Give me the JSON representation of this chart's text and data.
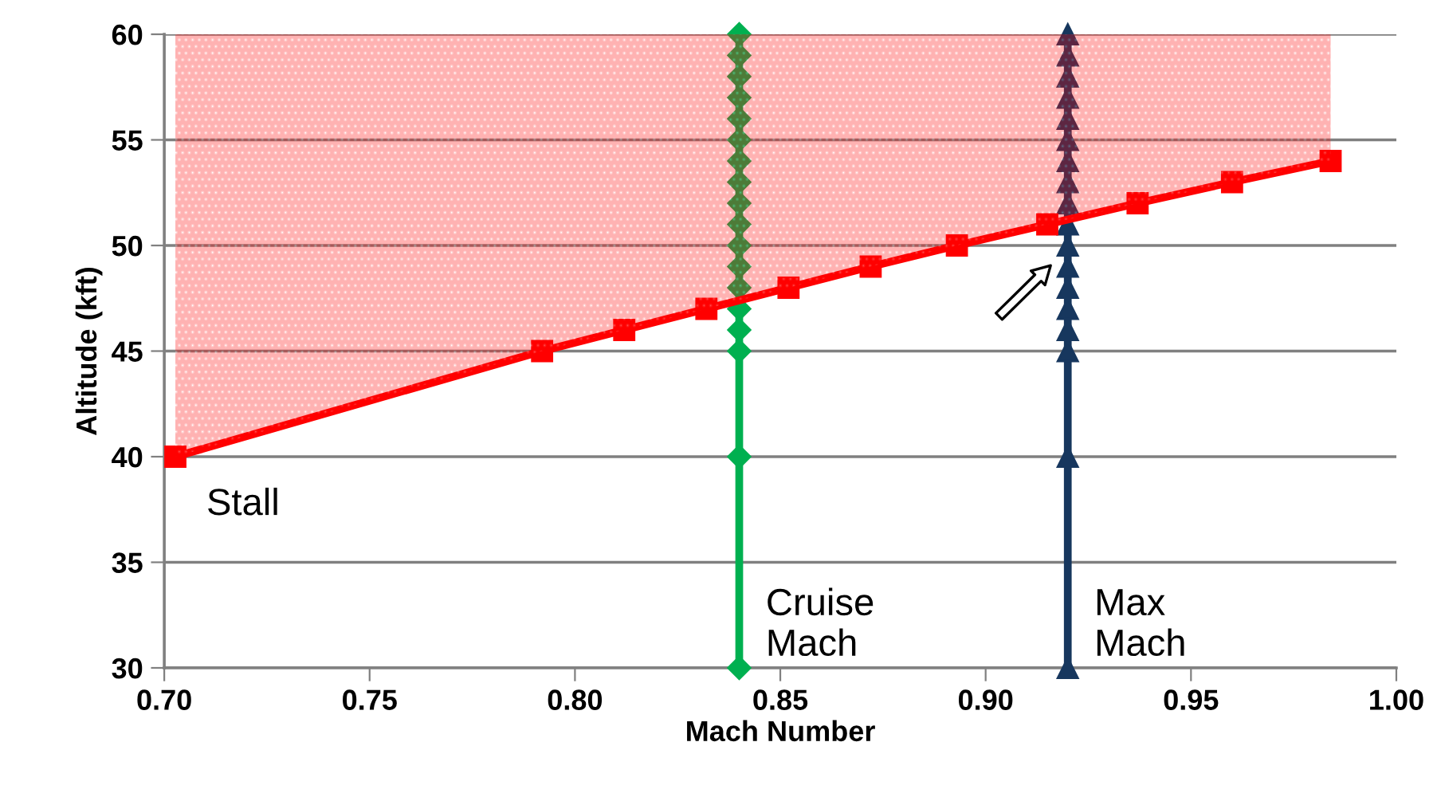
{
  "chart_data": {
    "type": "line",
    "xlabel": "Mach Number",
    "ylabel": "Altitude (kft)",
    "xlim": [
      0.7,
      1.0
    ],
    "xticks": [
      {
        "value": 0.7,
        "label": "0.70"
      },
      {
        "value": 0.75,
        "label": "0.75"
      },
      {
        "value": 0.8,
        "label": "0.80"
      },
      {
        "value": 0.85,
        "label": "0.85"
      },
      {
        "value": 0.9,
        "label": "0.90"
      },
      {
        "value": 0.95,
        "label": "0.95"
      },
      {
        "value": 1.0,
        "label": "1.00"
      }
    ],
    "ylim": [
      30,
      60
    ],
    "yticks": [
      30,
      35,
      40,
      45,
      50,
      55,
      60
    ],
    "grid": "y",
    "legend": false,
    "series": [
      {
        "name": "Cruise\nMach",
        "color": "#00b050",
        "marker": "diamond",
        "x": [
          0.84,
          0.84,
          0.84,
          0.84,
          0.84,
          0.84,
          0.84,
          0.84,
          0.84,
          0.84,
          0.84,
          0.84,
          0.84,
          0.84,
          0.84,
          0.84,
          0.84,
          0.84
        ],
        "values": [
          30,
          40,
          45,
          46,
          47,
          48,
          49,
          50,
          51,
          52,
          53,
          54,
          55,
          56,
          57,
          58,
          59,
          60
        ]
      },
      {
        "name": "Max\nMach",
        "color": "#17375e",
        "marker": "triangle",
        "x": [
          0.92,
          0.92,
          0.92,
          0.92,
          0.92,
          0.92,
          0.92,
          0.92,
          0.92,
          0.92,
          0.92,
          0.92,
          0.92,
          0.92,
          0.92,
          0.92,
          0.92,
          0.92
        ],
        "values": [
          30,
          40,
          45,
          46,
          47,
          48,
          49,
          50,
          51,
          52,
          53,
          54,
          55,
          56,
          57,
          58,
          59,
          60
        ]
      },
      {
        "name": "Stall",
        "color": "#ff0000",
        "marker": "square",
        "x": [
          0.7027,
          0.792,
          0.812,
          0.832,
          0.852,
          0.872,
          0.893,
          0.915,
          0.937,
          0.96,
          0.984
        ],
        "values": [
          40,
          45,
          46,
          47,
          48,
          49,
          50,
          51,
          52,
          53,
          54
        ],
        "lower": [
          40,
          45,
          46,
          47,
          48,
          49,
          50,
          51,
          52,
          53,
          54
        ],
        "upper": [
          60,
          60,
          60,
          60,
          60,
          60,
          60,
          60,
          60,
          60,
          60
        ]
      }
    ]
  }
}
